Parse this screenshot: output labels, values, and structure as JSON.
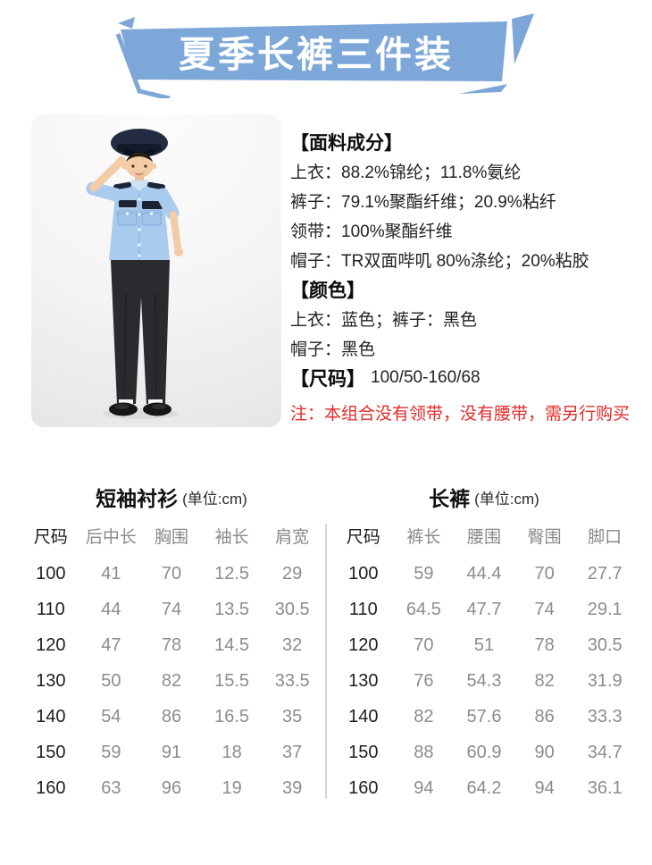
{
  "banner": {
    "title": "夏季长裤三件装"
  },
  "colors": {
    "banner_blue": "#7da7d8",
    "note_red": "#e32b2b",
    "shirt_blue": "#a9cbee",
    "hat_navy": "#232c42",
    "pants_black": "#2a2a2f"
  },
  "photo": {
    "icon": "child-police-uniform-saluting"
  },
  "info": {
    "lines": [
      {
        "type": "heading",
        "text": "【面料成分】"
      },
      {
        "type": "text",
        "text": "上衣：88.2%锦纶；11.8%氨纶"
      },
      {
        "type": "text",
        "text": "裤子：79.1%聚酯纤维；20.9%粘纤"
      },
      {
        "type": "text",
        "text": "领带：100%聚酯纤维"
      },
      {
        "type": "text",
        "text": "帽子：TR双面哔叽 80%涤纶；20%粘胶"
      },
      {
        "type": "heading",
        "text": "【颜色】"
      },
      {
        "type": "text",
        "text": "上衣：蓝色；裤子：黑色"
      },
      {
        "type": "text",
        "text": "帽子：黑色"
      },
      {
        "type": "mixed",
        "label": "【尺码】",
        "value": "100/50-160/68"
      }
    ],
    "note": "注：本组合没有领带，没有腰带，需另行购买"
  },
  "tables": [
    {
      "title": "短袖衬衫",
      "unit": "(单位:cm)",
      "headers": [
        "尺码",
        "后中长",
        "胸围",
        "袖长",
        "肩宽"
      ],
      "rows": [
        [
          "100",
          "41",
          "70",
          "12.5",
          "29"
        ],
        [
          "110",
          "44",
          "74",
          "13.5",
          "30.5"
        ],
        [
          "120",
          "47",
          "78",
          "14.5",
          "32"
        ],
        [
          "130",
          "50",
          "82",
          "15.5",
          "33.5"
        ],
        [
          "140",
          "54",
          "86",
          "16.5",
          "35"
        ],
        [
          "150",
          "59",
          "91",
          "18",
          "37"
        ],
        [
          "160",
          "63",
          "96",
          "19",
          "39"
        ]
      ]
    },
    {
      "title": "长裤",
      "unit": "(单位:cm)",
      "headers": [
        "尺码",
        "裤长",
        "腰围",
        "臀围",
        "脚口"
      ],
      "rows": [
        [
          "100",
          "59",
          "44.4",
          "70",
          "27.7"
        ],
        [
          "110",
          "64.5",
          "47.7",
          "74",
          "29.1"
        ],
        [
          "120",
          "70",
          "51",
          "78",
          "30.5"
        ],
        [
          "130",
          "76",
          "54.3",
          "82",
          "31.9"
        ],
        [
          "140",
          "82",
          "57.6",
          "86",
          "33.3"
        ],
        [
          "150",
          "88",
          "60.9",
          "90",
          "34.7"
        ],
        [
          "160",
          "94",
          "64.2",
          "94",
          "36.1"
        ]
      ]
    }
  ]
}
